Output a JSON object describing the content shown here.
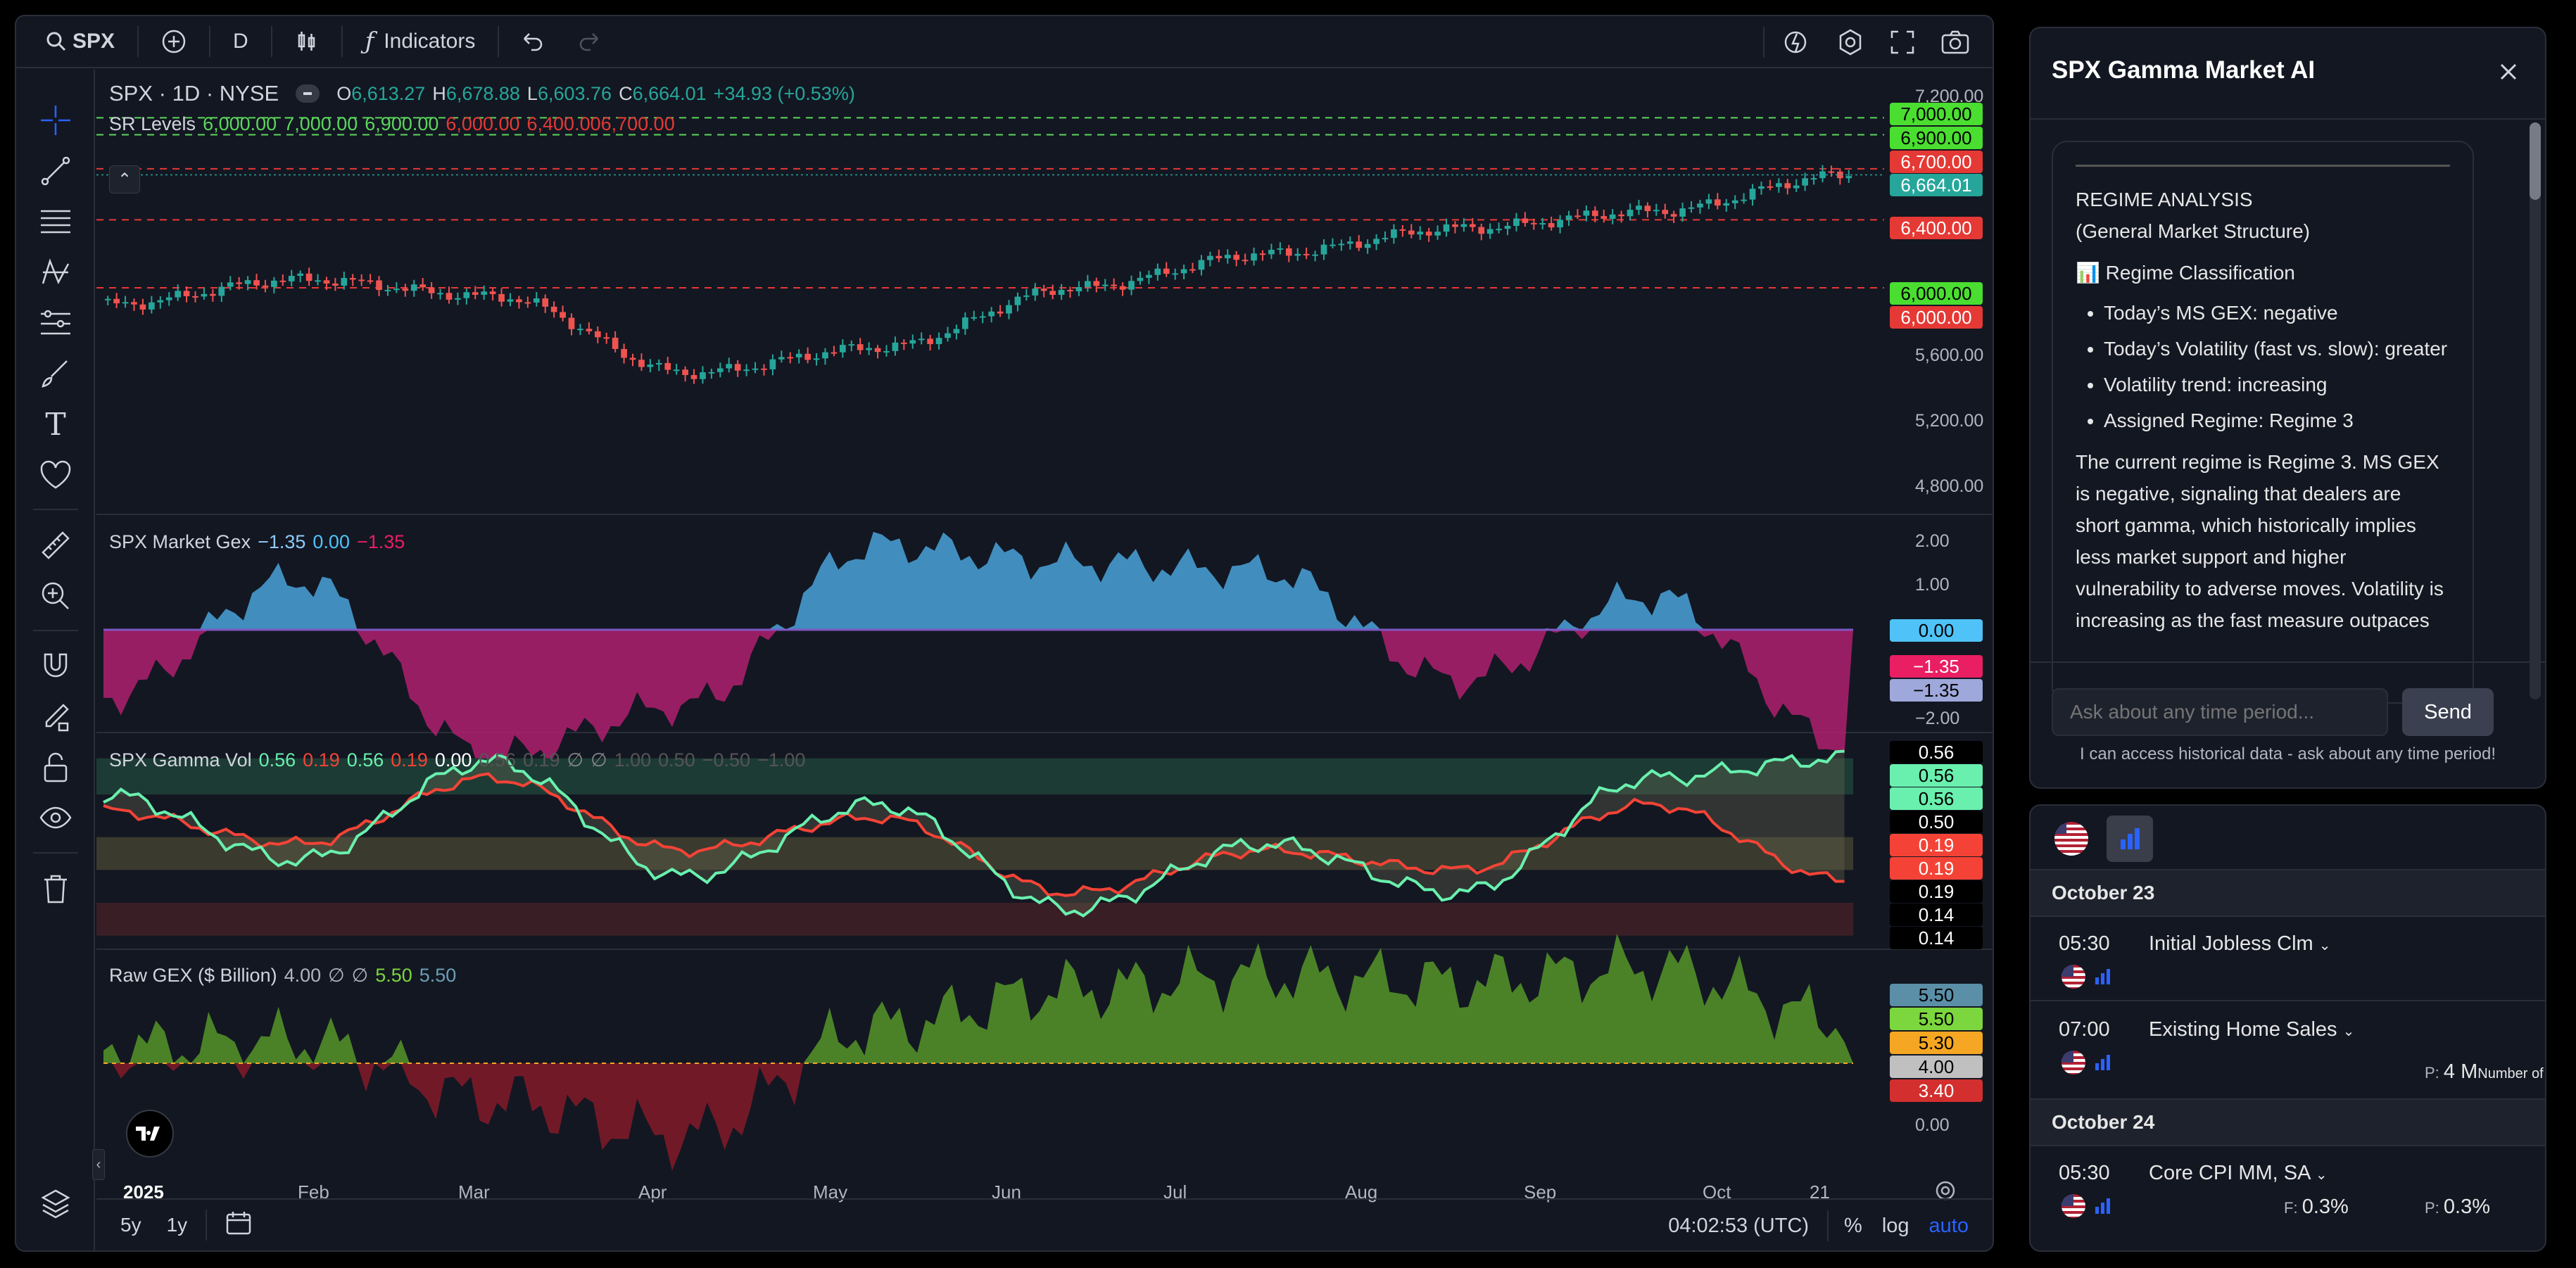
{
  "toolbar": {
    "symbol": "SPX",
    "interval": "D",
    "indicators_label": "Indicators"
  },
  "main_legend": {
    "title": "SPX · 1D · NYSE",
    "o_label": "O",
    "o": "6,613.27",
    "h_label": "H",
    "h": "6,678.88",
    "l_label": "L",
    "l": "6,603.76",
    "c_label": "C",
    "c": "6,664.01",
    "change": "+34.93 (+0.53%)"
  },
  "sr_legend": {
    "name": "SR Levels",
    "vals": [
      "6,000.00",
      "7,000.00",
      "6,900.00",
      "6,000.00",
      "6,400.00",
      "6,700.00"
    ]
  },
  "price_axis": [
    "7,200.00",
    "5,600.00",
    "5,200.00",
    "4,800.00"
  ],
  "price_tags": {
    "t7000": "7,000.00",
    "t6900": "6,900.00",
    "t6700": "6,700.00",
    "tlast": "6,664.01",
    "t6400": "6,400.00",
    "t6000a": "6,000.00",
    "t6000b": "6,000.00"
  },
  "gex_legend": {
    "name": "SPX Market Gex",
    "v1": "−1.35",
    "v2": "0.00",
    "v3": "−1.35"
  },
  "gex_axis": [
    "2.00",
    "1.00",
    "−2.00"
  ],
  "gex_tags": {
    "zero": "0.00",
    "a": "−1.35",
    "b": "−1.35"
  },
  "gvol_legend": {
    "name": "SPX Gamma Vol",
    "v1": "0.56",
    "v2": "0.19",
    "v3": "0.56",
    "v4": "0.19",
    "v5": "0.00",
    "v6": "0.56",
    "v7": "0.19",
    "v8": "∅",
    "v9": "∅",
    "v10": "1.00",
    "v11": "0.50",
    "v12": "−0.50",
    "v13": "−1.00"
  },
  "gvol_tags": [
    "0.56",
    "0.56",
    "0.56",
    "0.50",
    "0.19",
    "0.19",
    "0.19",
    "0.14",
    "0.14"
  ],
  "raw_legend": {
    "name": "Raw GEX ($ Billion)",
    "v1": "4.00",
    "v2": "∅",
    "v3": "∅",
    "v4": "5.50",
    "v5": "5.50"
  },
  "raw_tags": {
    "a": "5.50",
    "b": "5.50",
    "c": "5.30",
    "d": "4.00",
    "e": "3.40",
    "f": "0.00"
  },
  "x_axis": [
    "2025",
    "Feb",
    "Mar",
    "Apr",
    "May",
    "Jun",
    "Jul",
    "Aug",
    "Sep",
    "Oct",
    "21"
  ],
  "bottom": {
    "r5y": "5y",
    "r1y": "1y",
    "time": "04:02:53 (UTC)",
    "pct": "%",
    "log": "log",
    "auto": "auto"
  },
  "ai": {
    "title": "SPX Gamma Market AI",
    "heading": "REGIME ANALYSIS",
    "subheading": "(General Market Structure)",
    "section": "📊 Regime Classification",
    "bullets": [
      "Today’s MS GEX: negative",
      "Today’s Volatility (fast vs. slow): greater",
      "Volatility trend: increasing",
      "Assigned Regime: Regime 3"
    ],
    "paragraph": "The current regime is Regime 3. MS GEX is negative, signaling that dealers are short gamma, which historically implies less market support and higher vulnerability to adverse moves. Volatility is increasing as the fast measure outpaces",
    "placeholder": "Ask about any time period...",
    "send": "Send",
    "note": "I can access historical data - ask about any time period!"
  },
  "calendar": {
    "d1": "October 23",
    "e1_time": "05:30",
    "e1_name": "Initial Jobless Clm",
    "e2_time": "07:00",
    "e2_name": "Existing Home Sales",
    "e2_p_label": "P:",
    "e2_p": "4 M",
    "e2_unit": "Number of",
    "d2": "October 24",
    "e3_time": "05:30",
    "e3_name": "Core CPI MM, SA",
    "e3_f_label": "F:",
    "e3_f": "0.3%",
    "e3_p_label": "P:",
    "e3_p": "0.3%"
  },
  "colors": {
    "up": "#26a69a",
    "down": "#ef5350",
    "gex_pos": "#4aa3d9",
    "gex_neg": "#b0206e",
    "green_line": "#69f0ae",
    "red_line": "#f44336"
  },
  "chart_data": [
    {
      "type": "candlestick",
      "title": "SPX · 1D · NYSE",
      "x": [
        "2025",
        "Feb",
        "Mar",
        "Apr",
        "May",
        "Jun",
        "Jul",
        "Aug",
        "Sep",
        "Oct"
      ],
      "series": [
        {
          "name": "SPX",
          "values": [
            5900,
            6050,
            5950,
            5500,
            5650,
            6000,
            6200,
            6350,
            6450,
            6664
          ]
        }
      ],
      "ylim": [
        4800,
        7200
      ],
      "hlines": [
        6000,
        6400,
        6700,
        6900,
        7000
      ]
    },
    {
      "type": "area",
      "title": "SPX Market Gex",
      "x": [
        "2025",
        "Feb",
        "Mar",
        "Apr",
        "May",
        "Jun",
        "Jul",
        "Aug",
        "Sep",
        "Oct"
      ],
      "series": [
        {
          "name": "SPX Market Gex",
          "values": [
            -0.8,
            0.6,
            -1.5,
            -0.9,
            1.0,
            0.8,
            0.7,
            -0.6,
            0.4,
            -1.35
          ]
        }
      ],
      "ylim": [
        -2,
        2
      ]
    },
    {
      "type": "line",
      "title": "SPX Gamma Vol",
      "x": [
        "2025",
        "Feb",
        "Mar",
        "Apr",
        "May",
        "Jun",
        "Jul",
        "Aug",
        "Sep",
        "Oct"
      ],
      "series": [
        {
          "values": [
            0.45,
            0.25,
            0.55,
            0.2,
            0.42,
            0.1,
            0.3,
            0.15,
            0.5,
            0.56
          ]
        },
        {
          "values": [
            0.4,
            0.3,
            0.5,
            0.28,
            0.38,
            0.15,
            0.28,
            0.22,
            0.42,
            0.19
          ]
        }
      ],
      "ylim": [
        0,
        0.6
      ]
    },
    {
      "type": "area",
      "title": "Raw GEX ($ Billion)",
      "x": [
        "2025",
        "Feb",
        "Mar",
        "Apr",
        "May",
        "Jun",
        "Jul",
        "Aug",
        "Sep",
        "Oct"
      ],
      "series": [
        {
          "values": [
            4.2,
            4.3,
            3.5,
            3.0,
            4.5,
            5.0,
            5.2,
            5.1,
            5.3,
            4.6
          ]
        }
      ],
      "ylim": [
        0,
        5.5
      ]
    }
  ]
}
